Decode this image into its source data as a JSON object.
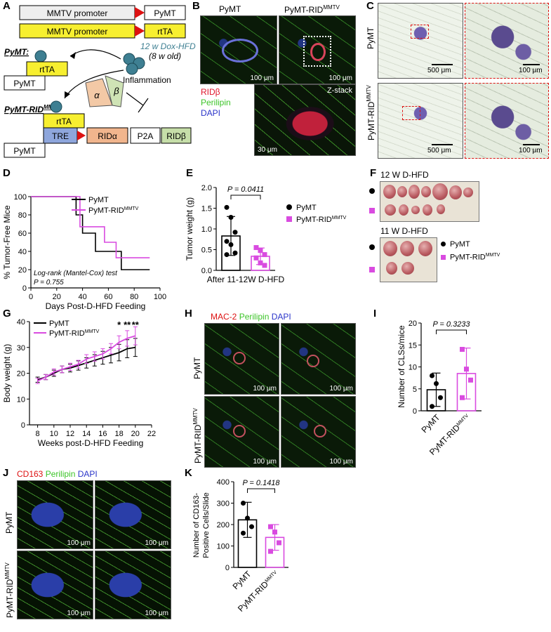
{
  "panel_letters": [
    "A",
    "B",
    "C",
    "D",
    "E",
    "F",
    "G",
    "H",
    "I",
    "J",
    "K"
  ],
  "panelA": {
    "promoter": "MMTV promoter",
    "pymt": "PyMT",
    "rtta": "rtTA",
    "dox": "12 w Dox-HFD",
    "dox_age": "(8 w old)",
    "pymt_label": "PyMT:",
    "pymt_rid_label": "PyMT-RID",
    "pymt_rid_sup": "MMTV",
    "inflammation": "Inflammation",
    "alpha": "α",
    "beta": "β",
    "tre": "TRE",
    "rida": "RIDα",
    "p2a": "P2A",
    "ridb": "RIDβ"
  },
  "panelB": {
    "col1": "PyMT",
    "col2": "PyMT-RID",
    "col2_sup": "MMTV",
    "legend_ridb": "RIDβ",
    "legend_perilipin": "Perilipin",
    "legend_dapi": "DAPI",
    "zstack": "Z-stack",
    "scale_100": "100 μm",
    "scale_30": "30 μm"
  },
  "panelC": {
    "row1": "PyMT",
    "row2": "PyMT-RID",
    "row2_sup": "MMTV",
    "scale_500": "500 μm",
    "scale_100": "100 μm"
  },
  "panelF": {
    "label12": "12 W D-HFD",
    "label11": "11 W D-HFD",
    "legend1": "PyMT",
    "legend2": "PyMT-RID",
    "legend2_sup": "MMTV"
  },
  "panelH": {
    "title_mac": "MAC-2",
    "title_peri": "Perilipin",
    "title_dapi": "DAPI",
    "row1": "PyMT",
    "row2": "PyMT-RID",
    "row2_sup": "MMTV",
    "scale": "100 μm"
  },
  "panelJ": {
    "title_cd": "CD163",
    "title_peri": "Perilipin",
    "title_dapi": "DAPI",
    "row1": "PyMT",
    "row2": "PyMT-RID",
    "row2_sup": "MMTV",
    "scale": "100 μm"
  },
  "chart_data": [
    {
      "id": "D",
      "type": "line",
      "title": "",
      "xlabel": "Days Post-D-HFD Feeding",
      "ylabel": "% Tumor-Free Mice",
      "xlim": [
        0,
        100
      ],
      "ylim": [
        0,
        100
      ],
      "xticks": [
        0,
        20,
        40,
        60,
        80,
        100
      ],
      "yticks": [
        0,
        20,
        40,
        60,
        80,
        100
      ],
      "annotation": "Log-rank (Mantel-Cox) test",
      "pvalue": "P = 0.755",
      "series": [
        {
          "name": "PyMT",
          "color": "#000000",
          "steps": [
            [
              0,
              100
            ],
            [
              35,
              100
            ],
            [
              35,
              80
            ],
            [
              40,
              80
            ],
            [
              40,
              60
            ],
            [
              50,
              60
            ],
            [
              50,
              40
            ],
            [
              70,
              40
            ],
            [
              70,
              20
            ],
            [
              92,
              20
            ]
          ]
        },
        {
          "name": "PyMT-RID",
          "name_sup": "MMTV",
          "color": "#d94be0",
          "steps": [
            [
              0,
              100
            ],
            [
              38,
              100
            ],
            [
              38,
              67
            ],
            [
              57,
              67
            ],
            [
              57,
              50
            ],
            [
              66,
              50
            ],
            [
              66,
              33
            ],
            [
              92,
              33
            ]
          ]
        }
      ]
    },
    {
      "id": "E",
      "type": "bar",
      "ylabel": "Tumor weight (g)",
      "xlabel": "After 11-12W D-HFD",
      "ylim": [
        0,
        2.0
      ],
      "yticks": [
        0.0,
        0.5,
        1.0,
        1.5,
        2.0
      ],
      "pvalue": "P = 0.0411",
      "series": [
        {
          "name": "PyMT",
          "color": "#000000",
          "mean": 0.83,
          "sd": 0.47,
          "points": [
            1.52,
            1.28,
            0.92,
            0.7,
            0.62,
            0.42,
            0.38
          ]
        },
        {
          "name": "PyMT-RID",
          "name_sup": "MMTV",
          "color": "#d94be0",
          "mean": 0.34,
          "sd": 0.2,
          "points": [
            0.55,
            0.48,
            0.38,
            0.3,
            0.18,
            0.12
          ]
        }
      ]
    },
    {
      "id": "G",
      "type": "line",
      "xlabel": "Weeks post-D-HFD Feeding",
      "ylabel": "Body weight (g)",
      "xlim": [
        7,
        22
      ],
      "ylim": [
        0,
        40
      ],
      "xticks": [
        8,
        10,
        12,
        14,
        16,
        18,
        20,
        22
      ],
      "yticks": [
        0,
        10,
        20,
        30,
        40
      ],
      "sig_marks": [
        {
          "x": 18,
          "label": "*"
        },
        {
          "x": 19,
          "label": "**"
        },
        {
          "x": 20,
          "label": "**"
        }
      ],
      "series": [
        {
          "name": "PyMT",
          "color": "#000000",
          "x": [
            8,
            9,
            10,
            11,
            12,
            13,
            14,
            15,
            16,
            17,
            18,
            19,
            20
          ],
          "y": [
            17.5,
            18.5,
            20,
            21.5,
            22,
            23,
            24,
            25,
            26,
            27,
            28,
            29.5,
            30
          ],
          "err": [
            1,
            1,
            1.2,
            1.3,
            1.5,
            1.8,
            2,
            2.2,
            2.5,
            3,
            3.2,
            3.5,
            3.5
          ]
        },
        {
          "name": "PyMT-RID",
          "name_sup": "MMTV",
          "color": "#d94be0",
          "x": [
            8,
            9,
            10,
            11,
            12,
            13,
            14,
            15,
            16,
            17,
            18,
            19,
            20
          ],
          "y": [
            17,
            18.5,
            20.5,
            21.5,
            22.5,
            23.5,
            25.5,
            26.5,
            27.5,
            29.5,
            32,
            33.5,
            34.5
          ],
          "err": [
            1,
            1,
            1.2,
            1.3,
            1.4,
            1.5,
            1.7,
            1.8,
            2,
            2,
            2.5,
            3,
            3.5
          ]
        }
      ]
    },
    {
      "id": "I",
      "type": "bar",
      "ylabel": "Number of CLSs/mice",
      "ylim": [
        0,
        20
      ],
      "yticks": [
        0,
        5,
        10,
        15,
        20
      ],
      "pvalue": "P = 0.3233",
      "categories": [
        "PyMT",
        "PyMT-RID"
      ],
      "category_sup": [
        "",
        "MMTV"
      ],
      "series": [
        {
          "name": "PyMT",
          "color": "#000000",
          "mean": 4.8,
          "sd": 3.8,
          "points": [
            8,
            6.2,
            3,
            1
          ]
        },
        {
          "name": "PyMT-RID",
          "color": "#d94be0",
          "mean": 8.5,
          "sd": 5.8,
          "points": [
            14,
            9.5,
            7,
            3
          ]
        }
      ]
    },
    {
      "id": "K",
      "type": "bar",
      "ylabel": "Number of CD163-Positive Cells/Slide",
      "ylim": [
        0,
        400
      ],
      "yticks": [
        0,
        100,
        200,
        300,
        400
      ],
      "pvalue": "P = 0.1418",
      "categories": [
        "PyMT",
        "PyMT-RID"
      ],
      "category_sup": [
        "",
        "MMTV"
      ],
      "series": [
        {
          "name": "PyMT",
          "color": "#000000",
          "mean": 222,
          "sd": 82,
          "points": [
            300,
            230,
            190,
            160
          ]
        },
        {
          "name": "PyMT-RID",
          "color": "#d94be0",
          "mean": 140,
          "sd": 60,
          "points": [
            190,
            165,
            115,
            75
          ]
        }
      ]
    }
  ]
}
